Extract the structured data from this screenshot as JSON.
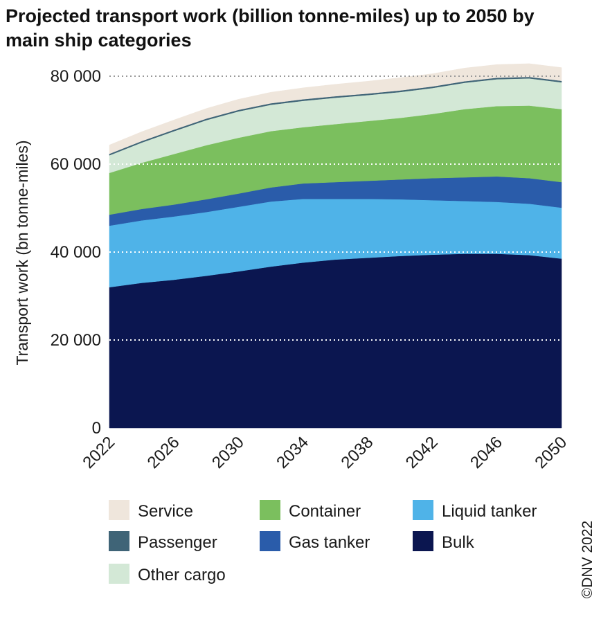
{
  "chart_data": {
    "type": "area",
    "stacked": true,
    "title": "Projected transport work (billion tonne-miles) up to 2050 by main ship categories",
    "ylabel": "Transport work  (bn tonne-miles)",
    "xlabel": "",
    "ylim": [
      0,
      80000
    ],
    "yticks": [
      0,
      20000,
      40000,
      60000,
      80000
    ],
    "ytick_labels": [
      "0",
      "20 000",
      "40 000",
      "60 000",
      "80 000"
    ],
    "xlim": [
      2022,
      2050
    ],
    "xticks": [
      "2022",
      "2026",
      "2030",
      "2034",
      "2038",
      "2042",
      "2046",
      "2050"
    ],
    "grid": "horizontal dotted",
    "legend_position": "bottom",
    "x": [
      2022,
      2024,
      2026,
      2028,
      2030,
      2032,
      2034,
      2036,
      2038,
      2040,
      2042,
      2044,
      2046,
      2048,
      2050
    ],
    "series": [
      {
        "name": "Bulk",
        "color": "#0b1650",
        "values": [
          32000,
          33000,
          33700,
          34600,
          35600,
          36700,
          37600,
          38300,
          38700,
          39100,
          39400,
          39600,
          39600,
          39300,
          38500
        ]
      },
      {
        "name": "Liquid tanker",
        "color": "#4fb3e8",
        "values": [
          14000,
          14200,
          14400,
          14500,
          14700,
          14800,
          14500,
          13800,
          13400,
          12900,
          12400,
          12000,
          11800,
          11700,
          11600
        ]
      },
      {
        "name": "Gas tanker",
        "color": "#2a5caa",
        "values": [
          2500,
          2600,
          2700,
          2900,
          3000,
          3200,
          3500,
          3800,
          4100,
          4500,
          5000,
          5400,
          5800,
          5800,
          5800
        ]
      },
      {
        "name": "Container",
        "color": "#7bbf5e",
        "values": [
          9500,
          10500,
          11500,
          12300,
          12700,
          12800,
          12800,
          13200,
          13600,
          14000,
          14600,
          15500,
          16000,
          16500,
          16600
        ]
      },
      {
        "name": "Other cargo",
        "color": "#d3e8d6",
        "values": [
          4000,
          4600,
          5200,
          5700,
          6000,
          6000,
          6000,
          6000,
          5900,
          5900,
          5900,
          6000,
          6100,
          6200,
          6100
        ]
      },
      {
        "name": "Passenger",
        "color": "#3f6477",
        "values": [
          350,
          350,
          350,
          350,
          350,
          350,
          350,
          350,
          350,
          350,
          350,
          350,
          350,
          350,
          350
        ]
      },
      {
        "name": "Service",
        "color": "#efe6dc",
        "values": [
          2000,
          2100,
          2200,
          2300,
          2400,
          2500,
          2600,
          2700,
          2800,
          2900,
          2900,
          3000,
          3000,
          3000,
          3000
        ]
      }
    ]
  },
  "legend": {
    "items": [
      {
        "label": "Service",
        "color": "#efe6dc"
      },
      {
        "label": "Container",
        "color": "#7bbf5e"
      },
      {
        "label": "Liquid tanker",
        "color": "#4fb3e8"
      },
      {
        "label": "Passenger",
        "color": "#3f6477"
      },
      {
        "label": "Gas tanker",
        "color": "#2a5caa"
      },
      {
        "label": "Bulk",
        "color": "#0b1650"
      },
      {
        "label": "Other cargo",
        "color": "#d3e8d6"
      }
    ]
  },
  "credit": "©DNV 2022"
}
